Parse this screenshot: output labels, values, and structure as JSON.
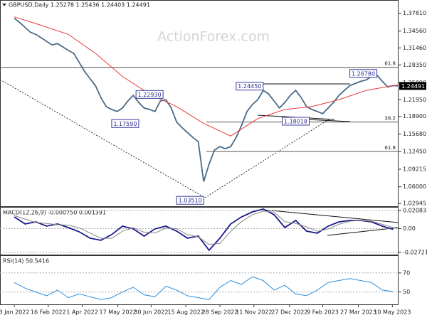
{
  "chart_data": [
    {
      "type": "line",
      "title": "GBPUSD,Daily 1.25278 1.25436 1.24403 1.24491",
      "watermark": "ActionForex.com",
      "xlim": [
        -2.63,
        71
      ],
      "ylim": [
        1.0243,
        1.3973
      ],
      "xticks": [
        {
          "value": 0,
          "label": "3 Jan 2022"
        },
        {
          "value": 6.29,
          "label": "16 Feb 2022"
        },
        {
          "value": 12.57,
          "label": "1 Apr 2022"
        },
        {
          "value": 19.14,
          "label": "17 May 2022"
        },
        {
          "value": 25.29,
          "label": "30 Jun 2022"
        },
        {
          "value": 31.71,
          "label": "15 Aug 2022"
        },
        {
          "value": 38,
          "label": "28 Sep 2022"
        },
        {
          "value": 44.29,
          "label": "11 Nov 2022"
        },
        {
          "value": 50.86,
          "label": "27 Dec 2022"
        },
        {
          "value": 57,
          "label": "9 Feb 2023"
        },
        {
          "value": 63.57,
          "label": "27 Mar 2023"
        },
        {
          "value": 69.86,
          "label": "10 May 2023"
        }
      ],
      "yticks": [
        {
          "value": 1.3781,
          "label": "1.37810"
        },
        {
          "value": 1.3456,
          "label": "1.34560"
        },
        {
          "value": 1.3146,
          "label": "1.31460"
        },
        {
          "value": 1.2835,
          "label": "1.28350"
        },
        {
          "value": 1.2509,
          "label": "1.25090"
        },
        {
          "value": 1.2195,
          "label": "1.21950"
        },
        {
          "value": 1.189,
          "label": "1.18900"
        },
        {
          "value": 1.1568,
          "label": "1.15680"
        },
        {
          "value": 1.1245,
          "label": "1.12450"
        },
        {
          "value": 1.09215,
          "label": "1.09215"
        },
        {
          "value": 1.06,
          "label": "1.06000"
        },
        {
          "value": 1.02945,
          "label": "1.02945"
        }
      ],
      "grid": false,
      "series": [
        {
          "color": "#4a6a86",
          "values": [
            1.369,
            1.3613,
            1.3523,
            1.3433,
            1.3394,
            1.333,
            1.3266,
            1.3201,
            1.3227,
            1.3163,
            1.3099,
            1.3047,
            1.288,
            1.2713,
            1.2584,
            1.2455,
            1.2237,
            1.207,
            1.2018,
            1.198,
            1.2044,
            1.2173,
            1.2276,
            1.2147,
            1.2044,
            1.2018,
            1.198,
            1.2173,
            1.2198,
            1.2044,
            1.1787,
            1.1684,
            1.1594,
            1.1504,
            1.1427,
            1.0694,
            1.1015,
            1.1272,
            1.1337,
            1.1298,
            1.1337,
            1.1504,
            1.1723,
            1.198,
            1.2108,
            1.2198,
            1.2366,
            1.2301,
            1.2173,
            1.2044,
            1.2147,
            1.2276,
            1.2366,
            1.2237,
            1.207,
            1.2018,
            1.198,
            1.1941,
            1.2044,
            1.2147,
            1.2276,
            1.2366,
            1.2455,
            1.2494,
            1.2533,
            1.2559,
            1.2623,
            1.2649,
            1.2533,
            1.243,
            1.2455,
            1.2449
          ]
        },
        {
          "color": "#e8393a",
          "x": [
            0,
            5,
            10,
            15,
            20,
            25,
            30,
            35,
            40,
            45,
            50,
            55,
            60,
            65,
            70,
            71
          ],
          "values": [
            1.3716,
            1.3561,
            1.3394,
            1.3047,
            1.2623,
            1.2301,
            1.207,
            1.1761,
            1.153,
            1.1851,
            1.2018,
            1.207,
            1.2198,
            1.2366,
            1.2455,
            1.2468
          ]
        }
      ],
      "current": {
        "value": 1.24491,
        "label": "1.24491"
      },
      "annotations": [
        {
          "x": 25,
          "value": 1.2293,
          "label": "1.22930"
        },
        {
          "x": 20.5,
          "value": 1.1759,
          "label": "1.17590"
        },
        {
          "x": 32.5,
          "value": 1.0351,
          "label": "1.03510"
        },
        {
          "x": 43.5,
          "value": 1.2445,
          "label": "1.24450"
        },
        {
          "x": 52,
          "value": 1.18018,
          "label": "1.18018"
        },
        {
          "x": 64.5,
          "value": 1.2678,
          "label": "1.26780"
        }
      ],
      "levels": [
        {
          "value": 1.279,
          "label": "61.8"
        },
        {
          "value": 1.1787,
          "label": "38.2"
        },
        {
          "value": 1.1247,
          "label": "61.8"
        }
      ]
    },
    {
      "type": "line",
      "title": "MACD(12,26,9) -0.000750 0.001391",
      "xlim": [
        -2.63,
        71
      ],
      "ylim": [
        -0.0297,
        0.0249
      ],
      "yticks": [
        0.020835,
        {
          "value": 0,
          "label": "0.00"
        },
        -0.027213
      ],
      "grid": true,
      "series": [
        {
          "color": "#1a1a8c",
          "x": [
            0,
            2,
            4,
            6,
            8,
            10,
            12,
            14,
            16,
            18,
            20,
            22,
            24,
            26,
            28,
            30,
            32,
            34,
            36,
            38,
            40,
            42,
            44,
            46,
            48,
            50,
            52,
            54,
            56,
            58,
            60,
            62,
            64,
            66,
            68,
            70
          ],
          "values": [
            0.0135,
            0.0054,
            0.0078,
            0.0029,
            0.0054,
            0.0013,
            -0.0036,
            -0.0109,
            -0.0133,
            -0.0068,
            0.0029,
            -0.0003,
            -0.0085,
            -0.0003,
            0.0029,
            -0.0028,
            -0.0109,
            -0.0085,
            -0.0247,
            -0.0109,
            0.0054,
            0.0135,
            0.0192,
            0.0225,
            0.016,
            0.0013,
            0.0094,
            -0.0028,
            -0.0052,
            0.0029,
            0.0078,
            0.0094,
            0.0094,
            0.0078,
            0.0029,
            -0.00075
          ]
        },
        {
          "color": "#888888",
          "x": [
            0,
            2,
            4,
            6,
            8,
            10,
            12,
            14,
            16,
            18,
            20,
            22,
            24,
            26,
            28,
            30,
            32,
            34,
            36,
            38,
            40,
            42,
            44,
            46,
            48,
            50,
            52,
            54,
            56,
            58,
            60,
            62,
            64,
            66,
            68,
            70
          ],
          "values": [
            0.015,
            0.011,
            0.007,
            0.006,
            0.0045,
            0.004,
            0.001,
            -0.005,
            -0.011,
            -0.011,
            -0.003,
            0.001,
            -0.004,
            -0.005,
            0.0005,
            0,
            -0.007,
            -0.0095,
            -0.018,
            -0.017,
            -0.003,
            0.008,
            0.016,
            0.02,
            0.019,
            0.008,
            0.006,
            0.002,
            -0.003,
            -0.0005,
            0.005,
            0.0085,
            0.0095,
            0.0085,
            0.005,
            0.001391
          ]
        }
      ]
    },
    {
      "type": "line",
      "title": "RSI(14) 50.5416",
      "xlim": [
        -2.63,
        71
      ],
      "ylim": [
        37,
        88.5
      ],
      "yticks": [
        70,
        50
      ],
      "grid": true,
      "series": [
        {
          "color": "#2a8fe0",
          "x": [
            0,
            2,
            4,
            6,
            8,
            10,
            12,
            14,
            16,
            18,
            20,
            22,
            24,
            26,
            28,
            30,
            32,
            34,
            36,
            38,
            40,
            42,
            44,
            46,
            48,
            50,
            52,
            54,
            56,
            58,
            60,
            62,
            64,
            66,
            68,
            70
          ],
          "values": [
            60,
            54,
            50,
            46,
            52,
            44,
            48,
            45,
            42,
            44,
            50,
            55,
            47,
            45,
            56,
            52,
            46,
            44,
            42,
            55,
            62,
            58,
            66,
            62,
            52,
            57,
            48,
            46,
            52,
            60,
            62,
            64,
            62,
            60,
            52,
            50.5416
          ]
        }
      ]
    }
  ]
}
